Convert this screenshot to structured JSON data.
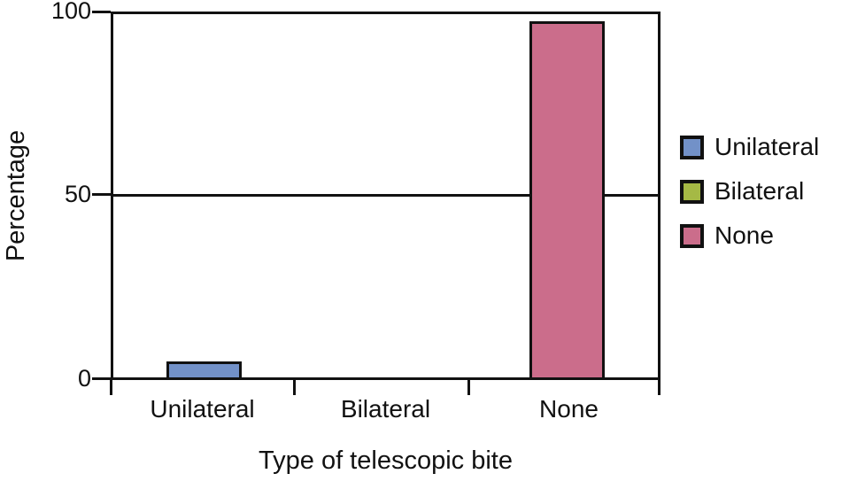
{
  "figure": {
    "y_axis_title": "Percentage",
    "x_axis_title": "Type of telescopic bite",
    "y_ticks": [
      "100",
      "50",
      "0"
    ]
  },
  "legend": {
    "position": "right",
    "items": [
      {
        "label": "Unilateral",
        "color": "#7291c8"
      },
      {
        "label": "Bilateral",
        "color": "#a5b945"
      },
      {
        "label": "None",
        "color": "#cb6d8b"
      }
    ]
  },
  "chart_data": {
    "type": "bar",
    "title": "",
    "categories": [
      "Unilateral",
      "Bilateral",
      "None"
    ],
    "values": [
      4.5,
      0,
      98
    ],
    "colors": [
      "#7291c8",
      "#a5b945",
      "#cb6d8b"
    ],
    "xlabel": "Type of telescopic bite",
    "ylabel": "Percentage",
    "ylim": [
      0,
      100
    ],
    "yticks": [
      0,
      50,
      100
    ],
    "gridlines_y": [
      50,
      100
    ],
    "legend_entries": [
      "Unilateral",
      "Bilateral",
      "None"
    ],
    "legend_position": "right",
    "axis_color": "#111111",
    "background_color": "#ffffff"
  }
}
